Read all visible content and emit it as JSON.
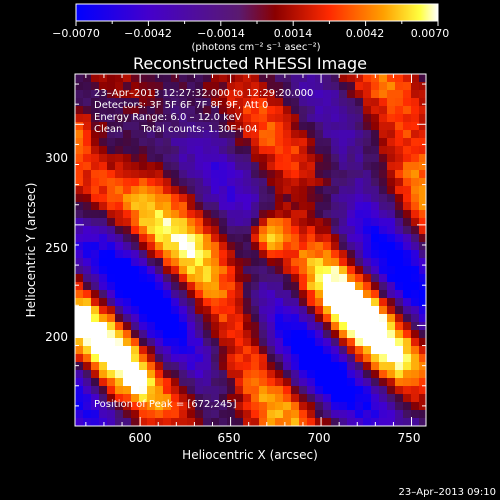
{
  "chart_data": {
    "type": "heatmap",
    "title": "Reconstructed RHESSI Image",
    "xlabel": "Heliocentric X (arcsec)",
    "ylabel": "Heliocentric Y (arcsec)",
    "xlim": [
      564,
      758
    ],
    "ylim": [
      150,
      325
    ],
    "x_ticks": [
      600,
      650,
      700,
      750
    ],
    "y_ticks": [
      200,
      250,
      300
    ],
    "colorbar": {
      "label": "(photons cm⁻² s⁻¹ asec⁻²)",
      "range": [
        -0.007,
        0.007
      ],
      "tick_labels": [
        "−0.0070",
        "−0.0042",
        "−0.0014",
        "0.0014",
        "0.0042",
        "0.0070"
      ],
      "colormap": [
        "#0000ff",
        "#5a00c8",
        "#6b1a8c",
        "#a00000",
        "#ff3000",
        "#ffa000",
        "#ffff30",
        "#ffffff"
      ]
    },
    "annotations": [
      "23–Apr–2013 12:27:32.000 to 12:29:20.000",
      "Detectors: 3F 5F 6F 7F 8F 9F, Att 0",
      "Energy Range: 6.0 – 12.0 keV",
      "Clean      Total counts: 1.30E+04"
    ],
    "peak_label": "Position of Peak = [672,245]",
    "peak": {
      "x": 672,
      "y": 245,
      "value": 0.007
    },
    "secondary_source": {
      "x": 566,
      "y": 297,
      "value": 0.0045
    },
    "timestamp": "23–Apr–2013 09:10"
  }
}
